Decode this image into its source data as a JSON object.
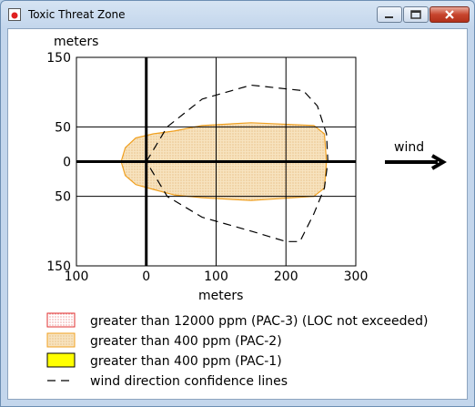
{
  "window": {
    "title": "Toxic Threat Zone"
  },
  "colors": {
    "red": "#e03030",
    "orange": "#f0a020",
    "yellow": "#ffff00",
    "fill": "#f6dfb5"
  },
  "chart_data": {
    "type": "area",
    "xlabel": "meters",
    "ylabel": "meters",
    "xlim": [
      -100,
      300
    ],
    "ylim": [
      -150,
      150
    ],
    "x_tick_labels": [
      "100",
      "0",
      "100",
      "200",
      "300"
    ],
    "y_tick_labels": [
      "150",
      "50",
      "0",
      "50",
      "150"
    ],
    "wind_label": "wind",
    "legend": [
      {
        "label": "greater than 12000 ppm (PAC-3) (LOC not exceeded)"
      },
      {
        "label": "greater than 400 ppm (PAC-2)"
      },
      {
        "label": "greater than 400 ppm (PAC-1)"
      },
      {
        "label": "wind direction confidence lines"
      }
    ],
    "zone_pac2": [
      [
        -36,
        0
      ],
      [
        -30,
        20
      ],
      [
        -15,
        34
      ],
      [
        10,
        40
      ],
      [
        40,
        44
      ],
      [
        80,
        52
      ],
      [
        150,
        56
      ],
      [
        240,
        52
      ],
      [
        255,
        40
      ],
      [
        258,
        0
      ],
      [
        255,
        -38
      ],
      [
        240,
        -50
      ],
      [
        150,
        -56
      ],
      [
        80,
        -52
      ],
      [
        40,
        -48
      ],
      [
        10,
        -40
      ],
      [
        -15,
        -33
      ],
      [
        -30,
        -20
      ]
    ],
    "confidence_lines": [
      [
        0,
        0
      ],
      [
        30,
        50
      ],
      [
        80,
        90
      ],
      [
        150,
        110
      ],
      [
        225,
        102
      ],
      [
        245,
        80
      ],
      [
        258,
        40
      ],
      [
        260,
        0
      ],
      [
        255,
        -38
      ],
      [
        240,
        -75
      ],
      [
        220,
        -115
      ],
      [
        200,
        -115
      ],
      [
        150,
        -100
      ],
      [
        80,
        -80
      ],
      [
        30,
        -50
      ],
      [
        0,
        0
      ]
    ]
  }
}
